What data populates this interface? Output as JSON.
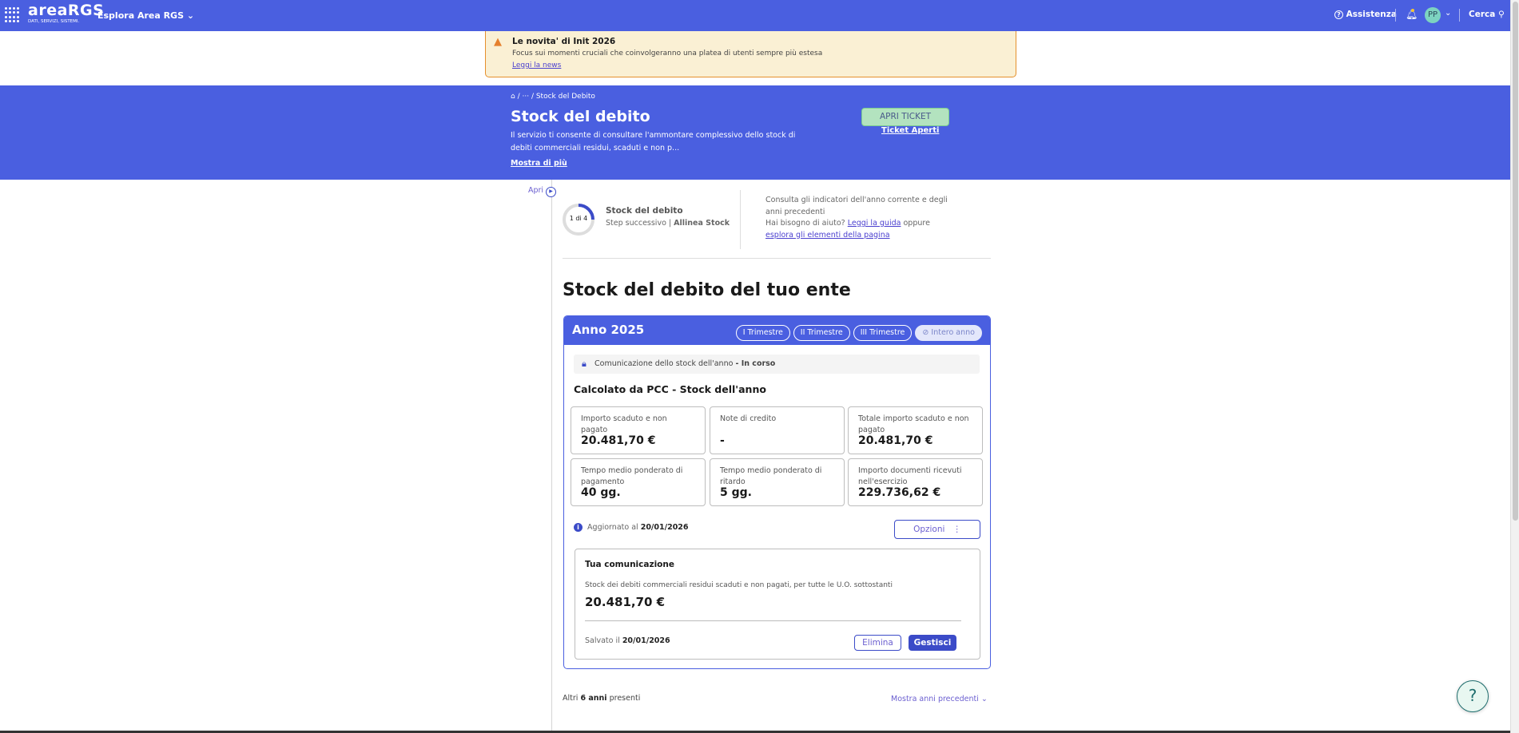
{
  "header": {
    "logo_text": "areaRGS",
    "logo_tagline": "DATI, SERVIZI, SISTEMI.",
    "explore": "Esplora Area RGS",
    "assistance": "Assistenza",
    "avatar": "PP",
    "search": "Cerca",
    "brand_color": "#4a5fe0"
  },
  "banner": {
    "title": "Le novita' di Init 2026",
    "text": "Focus sui momenti cruciali che coinvolgeranno una platea di utenti sempre più estesa",
    "link": "Leggi la news"
  },
  "hero": {
    "breadcrumb_ellipsis": "···",
    "breadcrumb_current": "Stock del Debito",
    "title": "Stock del debito",
    "description": "Il servizio ti consente di consultare l'ammontare complessivo dello stock di debiti commerciali residui, scaduti e non p...",
    "show_more": "Mostra di più",
    "ticket_button": "APRI TICKET",
    "open_tickets": "Ticket Aperti"
  },
  "sidebar": {
    "open": "Apri"
  },
  "steps": {
    "progress": "1 di 4",
    "progress_fraction": 0.25,
    "title": "Stock del debito",
    "next_label": "Step successivo |",
    "next_value": "Allinea Stock",
    "help_text": "Consulta gli indicatori dell'anno corrente e degli anni precedenti",
    "help_question": "Hai bisogno di aiuto?",
    "guide_link": "Leggi la guida",
    "or": "oppure",
    "explore_link": "esplora gli elementi della pagina"
  },
  "main": {
    "title": "Stock del debito del tuo ente"
  },
  "year_card": {
    "year": "Anno 2025",
    "periods": [
      "I Trimestre",
      "II Trimestre",
      "III Trimestre",
      "Intero anno"
    ],
    "selected_period": "Intero anno",
    "status_text": "Comunicazione dello stock dell'anno",
    "status_value": "- In corso",
    "section_title": "Calcolato da PCC - Stock dell'anno",
    "tiles": [
      {
        "label": "Importo scaduto e non pagato",
        "value": "20.481,70 €"
      },
      {
        "label": "Note di credito",
        "value": "-"
      },
      {
        "label": "Totale importo scaduto e non pagato",
        "value": "20.481,70 €"
      },
      {
        "label": "Tempo medio ponderato di pagamento",
        "value": "40 gg."
      },
      {
        "label": "Tempo medio ponderato di ritardo",
        "value": "5 gg."
      },
      {
        "label": "Importo documenti ricevuti nell'esercizio",
        "value": "229.736,62 €"
      }
    ],
    "updated_label": "Aggiornato al",
    "updated_date": "20/01/2026",
    "options": "Opzioni",
    "communication": {
      "title": "Tua comunicazione",
      "description": "Stock dei debiti commerciali residui scaduti e non pagati, per tutte le U.O. sottostanti",
      "amount": "20.481,70 €",
      "saved_label": "Salvato il",
      "saved_date": "20/01/2026",
      "delete": "Elimina",
      "manage": "Gestisci"
    }
  },
  "footer": {
    "others_prefix": "Altri",
    "others_count": "6 anni",
    "others_suffix": "presenti",
    "show_previous": "Mostra anni precedenti"
  }
}
